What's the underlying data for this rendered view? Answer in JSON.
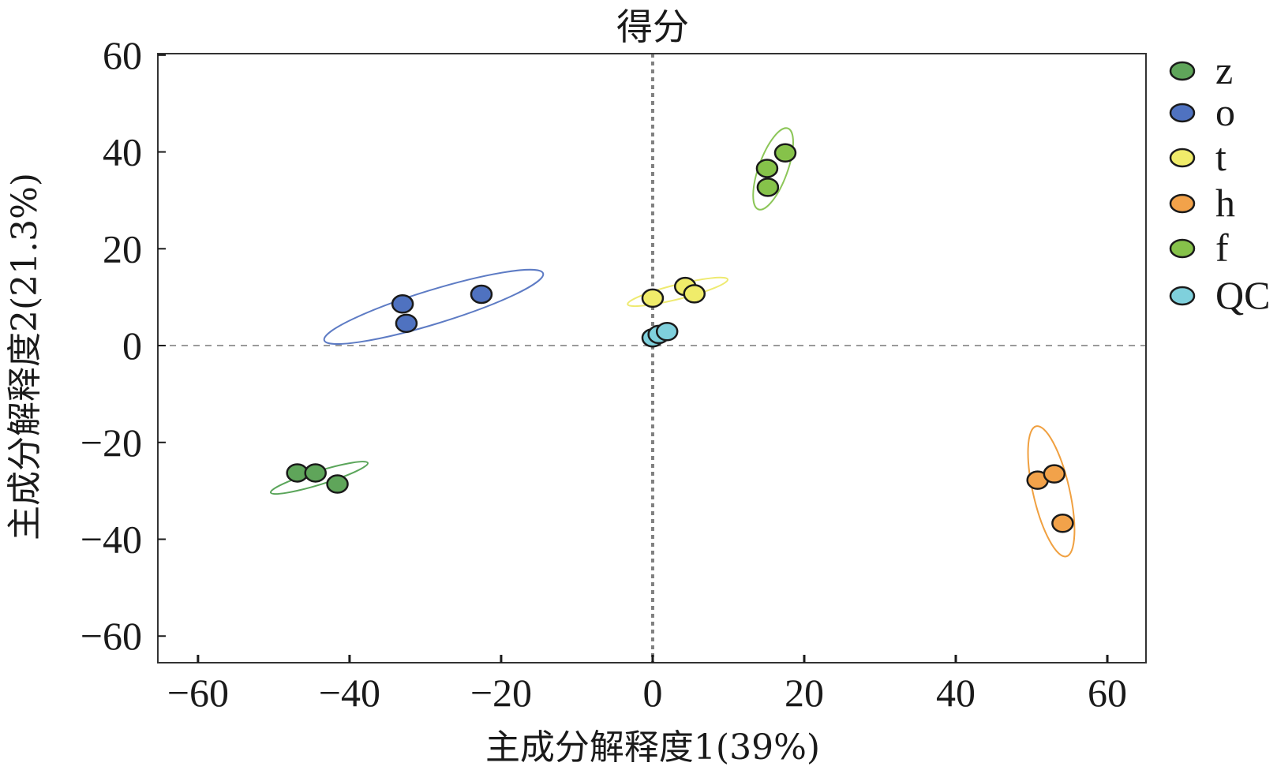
{
  "chart_data": {
    "type": "scatter",
    "title": "得分",
    "xlabel": "主成分解释度1(39%)",
    "ylabel": "主成分解释度2(21.3%)",
    "xlim": [
      -65.3,
      65.1
    ],
    "ylim": [
      -65.5,
      60.3
    ],
    "xticks": [
      -60,
      -40,
      -20,
      0,
      20,
      40,
      60
    ],
    "yticks": [
      60,
      40,
      20,
      0,
      -20,
      -40,
      -60
    ],
    "xtick_labels": [
      "−60",
      "−40",
      "−20",
      "0",
      "20",
      "40",
      "60"
    ],
    "ytick_labels": [
      "60",
      "40",
      "20",
      "0",
      "−20",
      "−40",
      "−60"
    ],
    "grid": false,
    "reference_lines": {
      "x": 0,
      "y": 0
    },
    "legend_position": "right",
    "series": [
      {
        "name": "z",
        "color": "#5fa55a",
        "ellipse_color": "#5aa55a",
        "points": [
          [
            -46.9,
            -26.3
          ],
          [
            -44.5,
            -26.3
          ],
          [
            -41.6,
            -28.6
          ]
        ],
        "ellipse": {
          "cx": -44.0,
          "cy": -27.3,
          "rx": 6.7,
          "ry": 1.4,
          "angle": -17
        }
      },
      {
        "name": "o",
        "color": "#4f72c0",
        "ellipse_color": "#5d7bc4",
        "points": [
          [
            -33.0,
            8.6
          ],
          [
            -32.5,
            4.6
          ],
          [
            -22.6,
            10.6
          ]
        ],
        "ellipse": {
          "cx": -28.9,
          "cy": 8.0,
          "rx": 15.1,
          "ry": 3.5,
          "angle": -17
        }
      },
      {
        "name": "t",
        "color": "#f0ec6a",
        "ellipse_color": "#eeea70",
        "points": [
          [
            0.0,
            9.8
          ],
          [
            4.3,
            12.2
          ],
          [
            5.5,
            10.7
          ]
        ],
        "ellipse": {
          "cx": 3.3,
          "cy": 11.1,
          "rx": 6.8,
          "ry": 1.5,
          "angle": -14
        }
      },
      {
        "name": "h",
        "color": "#f2a24a",
        "ellipse_color": "#f0a040",
        "points": [
          [
            50.8,
            -27.8
          ],
          [
            53.0,
            -26.5
          ],
          [
            54.1,
            -36.7
          ]
        ],
        "ellipse": {
          "cx": 52.6,
          "cy": -30.1,
          "rx": 2.4,
          "ry": 13.8,
          "angle": -13
        }
      },
      {
        "name": "f",
        "color": "#86c24a",
        "ellipse_color": "#8cc658",
        "points": [
          [
            17.5,
            39.8
          ],
          [
            15.1,
            36.6
          ],
          [
            15.2,
            32.7
          ]
        ],
        "ellipse": {
          "cx": 15.9,
          "cy": 36.5,
          "rx": 1.9,
          "ry": 8.9,
          "angle": 20
        }
      },
      {
        "name": "QC",
        "color": "#7fd0dc",
        "ellipse_color": null,
        "points": [
          [
            0.0,
            1.6
          ],
          [
            0.8,
            2.3
          ],
          [
            1.9,
            2.9
          ]
        ],
        "ellipse": null
      }
    ]
  }
}
